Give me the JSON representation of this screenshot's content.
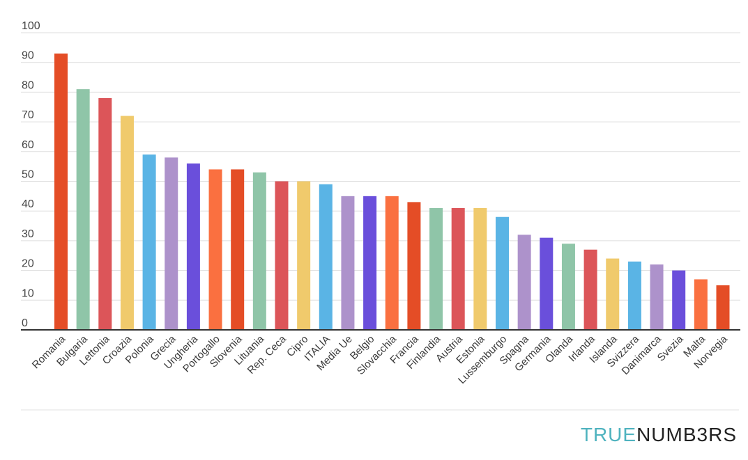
{
  "chart_data": {
    "type": "bar",
    "categories": [
      "Romania",
      "Bulgaria",
      "Lettonia",
      "Croazia",
      "Polonia",
      "Grecia",
      "Ungheria",
      "Portogallo",
      "Slovenia",
      "Lituania",
      "Rep. Ceca",
      "Cipro",
      "ITALIA",
      "Media Ue",
      "Belgio",
      "Slovacchia",
      "Francia",
      "Finlandia",
      "Austria",
      "Estonia",
      "Lussemburgo",
      "Spagna",
      "Germania",
      "Olanda",
      "Irlanda",
      "Islanda",
      "Svizzera",
      "Danimarca",
      "Svezia",
      "Malta",
      "Norvegia"
    ],
    "values": [
      93,
      81,
      78,
      72,
      59,
      58,
      56,
      54,
      54,
      53,
      50,
      50,
      49,
      45,
      45,
      45,
      43,
      41,
      41,
      41,
      38,
      32,
      31,
      29,
      27,
      24,
      23,
      22,
      20,
      17,
      15
    ],
    "colors": [
      "#e44d26",
      "#8fc5a8",
      "#dc5559",
      "#f0ca6c",
      "#5ab4e5",
      "#ad92cb",
      "#6a4fdb",
      "#fa7040",
      "#e44d26",
      "#8fc5a8",
      "#dc5559",
      "#f0ca6c",
      "#5ab4e5",
      "#ad92cb",
      "#6a4fdb",
      "#fa7040",
      "#e44d26",
      "#8fc5a8",
      "#dc5559",
      "#f0ca6c",
      "#5ab4e5",
      "#ad92cb",
      "#6a4fdb",
      "#8fc5a8",
      "#dc5559",
      "#f0ca6c",
      "#5ab4e5",
      "#ad92cb",
      "#6a4fdb",
      "#fa7040",
      "#e44d26"
    ],
    "ylim": [
      0,
      100
    ],
    "yticks": [
      0,
      10,
      20,
      30,
      40,
      50,
      60,
      70,
      80,
      90,
      100
    ],
    "grid": true,
    "title": "",
    "xlabel": "",
    "ylabel": ""
  },
  "brand": {
    "part1": "TRUE",
    "part2": "NUMB3RS"
  }
}
